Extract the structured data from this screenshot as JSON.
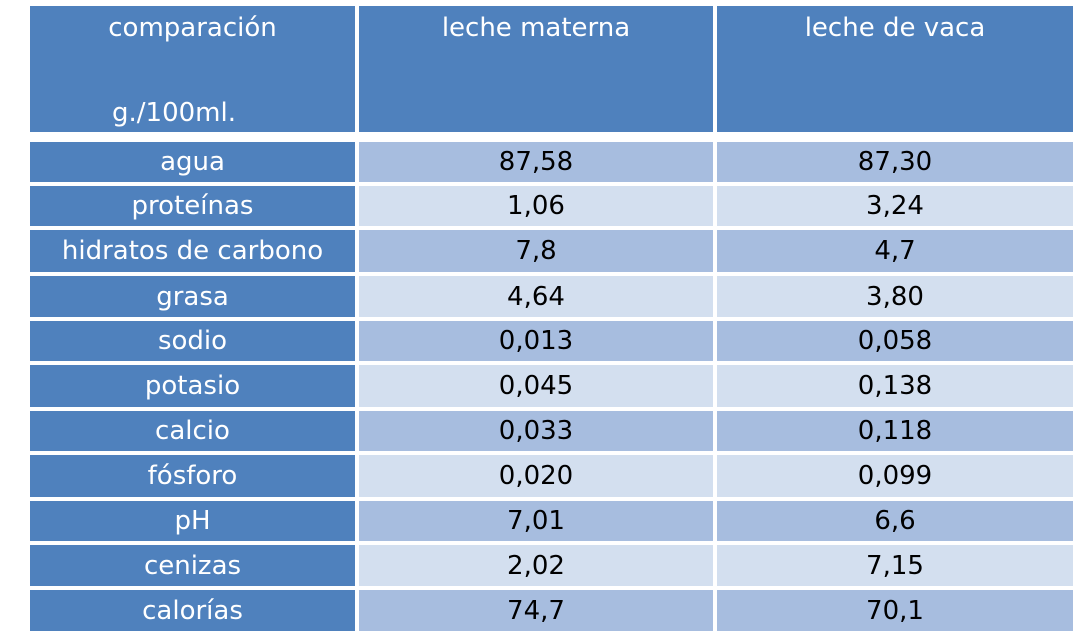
{
  "table": {
    "header": {
      "col1_title": "comparación",
      "col1_unit": "g./100ml.",
      "col2": "leche materna",
      "col3": "leche de vaca"
    },
    "rows": [
      {
        "label": "agua",
        "materna": "87,58",
        "vaca": "87,30"
      },
      {
        "label": "proteínas",
        "materna": "1,06",
        "vaca": "3,24"
      },
      {
        "label": "hidratos de carbono",
        "materna": "7,8",
        "vaca": "4,7"
      },
      {
        "label": "grasa",
        "materna": "4,64",
        "vaca": "3,80"
      },
      {
        "label": "sodio",
        "materna": "0,013",
        "vaca": "0,058"
      },
      {
        "label": "potasio",
        "materna": "0,045",
        "vaca": "0,138"
      },
      {
        "label": "calcio",
        "materna": "0,033",
        "vaca": "0,118"
      },
      {
        "label": "fósforo",
        "materna": "0,020",
        "vaca": "0,099"
      },
      {
        "label": "pH",
        "materna": "7,01",
        "vaca": "6,6"
      },
      {
        "label": "cenizas",
        "materna": "2,02",
        "vaca": "7,15"
      },
      {
        "label": "calorías",
        "materna": "74,7",
        "vaca": "70,1"
      }
    ]
  }
}
